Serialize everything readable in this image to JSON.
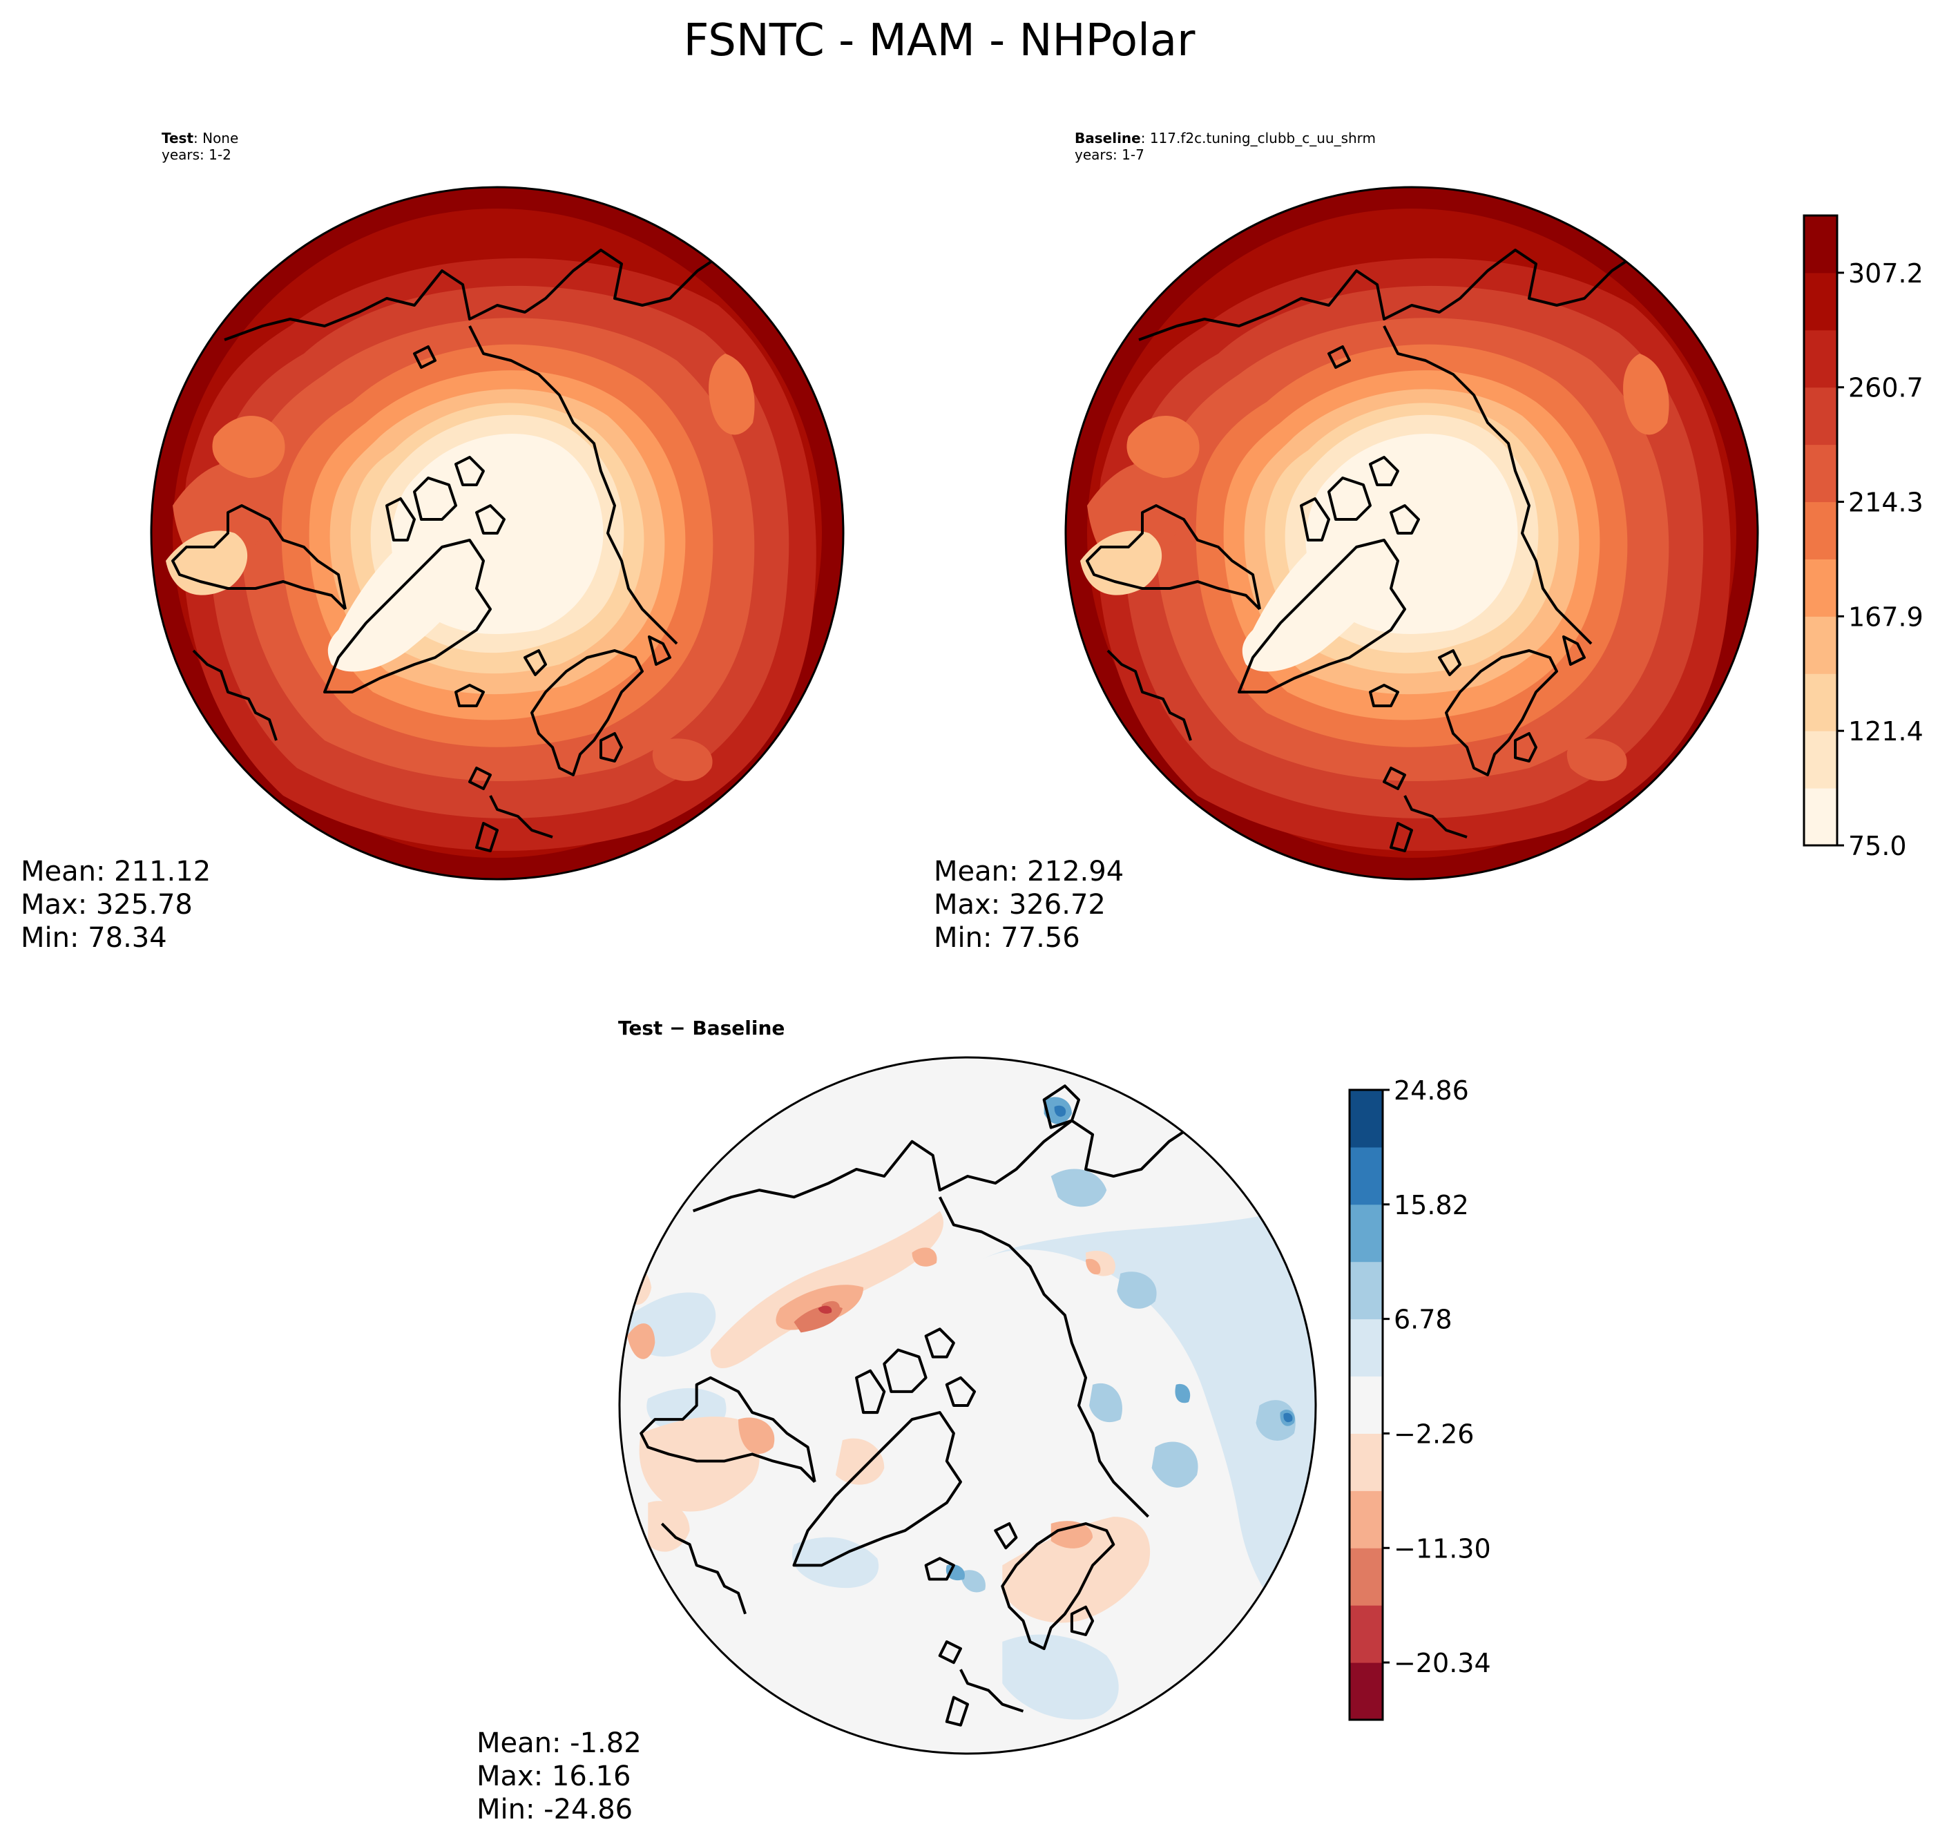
{
  "title": "FSNTC - MAM - NHPolar",
  "test_panel": {
    "label_bold": "Test",
    "label_rest": ": None",
    "years": "years: 1-2",
    "mean": "Mean: 211.12",
    "max": "Max: 325.78",
    "min": "Min: 78.34"
  },
  "baseline_panel": {
    "label_bold": "Baseline",
    "label_rest": ": 117.f2c.tuning_clubb_c_uu_shrm",
    "years": "years: 1-7",
    "mean": "Mean: 212.94",
    "max": "Max: 326.72",
    "min": "Min: 77.56"
  },
  "diff_panel": {
    "label": "Test − Baseline",
    "mean": "Mean: -1.82",
    "max": "Max: 16.16",
    "min": "Min: -24.86"
  },
  "colorbar_main": {
    "ticks": [
      "75.0",
      "121.4",
      "167.9",
      "214.3",
      "260.7",
      "307.2"
    ],
    "colors": [
      "#fff5e6",
      "#fee6c6",
      "#fdd3a2",
      "#fdbb84",
      "#fc9a5e",
      "#f07745",
      "#e05a3a",
      "#d0402c",
      "#bf2418",
      "#a80c03",
      "#8e0000"
    ]
  },
  "colorbar_diff": {
    "ticks": [
      "24.86",
      "15.82",
      "6.78",
      "−2.26",
      "−11.30",
      "−20.34"
    ],
    "colors": [
      "#8c0b25",
      "#c23a3f",
      "#e07b62",
      "#f6af8e",
      "#fbdcc8",
      "#f5f5f5",
      "#d7e7f2",
      "#a8cde3",
      "#66a8d0",
      "#2f7ab8",
      "#114c85"
    ]
  },
  "chart_data": [
    {
      "type": "heatmap",
      "title": "Test : None",
      "subtitle": "years: 1-2",
      "mean": 211.12,
      "max": 325.78,
      "min": 78.34,
      "levels": [
        75.0,
        121.4,
        167.9,
        214.3,
        260.7,
        307.2
      ]
    },
    {
      "type": "heatmap",
      "title": "Baseline : 117.f2c.tuning_clubb_c_uu_shrm",
      "subtitle": "years: 1-7",
      "mean": 212.94,
      "max": 326.72,
      "min": 77.56,
      "levels": [
        75.0,
        121.4,
        167.9,
        214.3,
        260.7,
        307.2
      ]
    },
    {
      "type": "heatmap",
      "title": "Test − Baseline",
      "mean": -1.82,
      "max": 16.16,
      "min": -24.86,
      "levels": [
        -20.34,
        -11.3,
        -2.26,
        6.78,
        15.82,
        24.86
      ]
    }
  ]
}
